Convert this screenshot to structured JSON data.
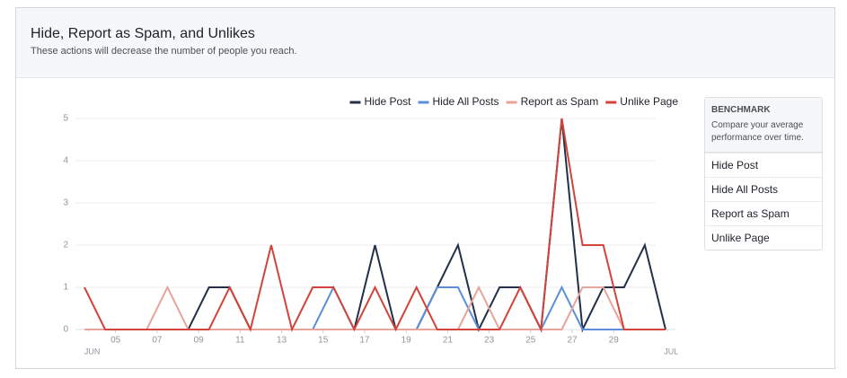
{
  "header": {
    "title": "Hide, Report as Spam, and Unlikes",
    "subtitle": "These actions will decrease the number of people you reach."
  },
  "chart_data": {
    "type": "line",
    "x": [
      0,
      1,
      2,
      3,
      4,
      5,
      6,
      7,
      8,
      9,
      10,
      11,
      12,
      13,
      14,
      15,
      16,
      17,
      18,
      19,
      20,
      21,
      22,
      23,
      24,
      25,
      26,
      27,
      28
    ],
    "xlim": [
      0,
      28
    ],
    "xticks": [
      {
        "value": 0.2,
        "label": "JUN"
      },
      {
        "value": 1.5,
        "label": "05"
      },
      {
        "value": 3.5,
        "label": "07"
      },
      {
        "value": 5.5,
        "label": "09"
      },
      {
        "value": 7.5,
        "label": "11"
      },
      {
        "value": 9.5,
        "label": "13"
      },
      {
        "value": 11.5,
        "label": "15"
      },
      {
        "value": 13.5,
        "label": "17"
      },
      {
        "value": 15.5,
        "label": "19"
      },
      {
        "value": 17.5,
        "label": "21"
      },
      {
        "value": 19.5,
        "label": "23"
      },
      {
        "value": 21.5,
        "label": "25"
      },
      {
        "value": 23.5,
        "label": "27"
      },
      {
        "value": 25.5,
        "label": "29"
      },
      {
        "value": 28.1,
        "label": "JUL"
      }
    ],
    "ylim": [
      0,
      5
    ],
    "yticks": [
      0,
      1,
      2,
      3,
      4,
      5
    ],
    "grid": true,
    "series": [
      {
        "name": "Hide Post",
        "color": "#23304a",
        "values": [
          0,
          0,
          0,
          0,
          0,
          0,
          1,
          1,
          0,
          0,
          0,
          0,
          0,
          0,
          2,
          0,
          0,
          1,
          2,
          0,
          1,
          1,
          0,
          5,
          0,
          1,
          1,
          2,
          0
        ]
      },
      {
        "name": "Hide All Posts",
        "color": "#5b8fd9",
        "values": [
          0,
          0,
          0,
          0,
          0,
          0,
          0,
          0,
          0,
          0,
          0,
          0,
          1,
          0,
          0,
          0,
          0,
          1,
          1,
          0,
          0,
          0,
          0,
          1,
          0,
          0,
          0,
          0,
          0
        ]
      },
      {
        "name": "Report as Spam",
        "color": "#e8a49b",
        "values": [
          0,
          0,
          0,
          0,
          1,
          0,
          0,
          0,
          0,
          0,
          0,
          0,
          0,
          0,
          0,
          0,
          0,
          0,
          0,
          1,
          0,
          0,
          0,
          0,
          1,
          1,
          0,
          0,
          0
        ]
      },
      {
        "name": "Unlike Page",
        "color": "#d2433a",
        "values": [
          1,
          0,
          0,
          0,
          0,
          0,
          0,
          1,
          0,
          2,
          0,
          1,
          1,
          0,
          1,
          0,
          1,
          0,
          0,
          0,
          0,
          1,
          0,
          5,
          2,
          2,
          0,
          0,
          0
        ]
      }
    ]
  },
  "benchmark": {
    "title": "BENCHMARK",
    "description": "Compare your average performance over time.",
    "items": [
      "Hide Post",
      "Hide All Posts",
      "Report as Spam",
      "Unlike Page"
    ]
  }
}
